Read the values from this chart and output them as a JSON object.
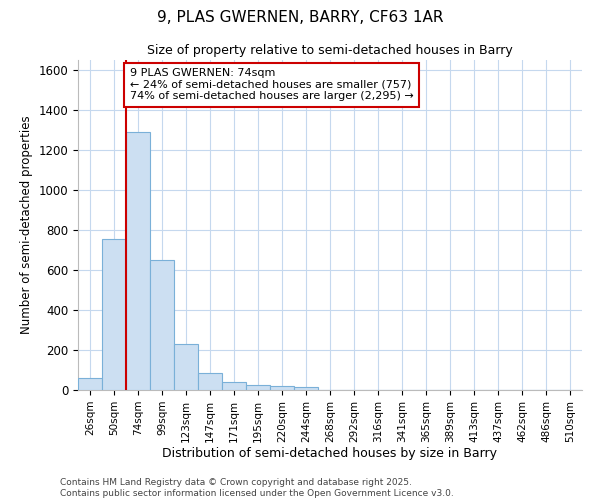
{
  "title": "9, PLAS GWERNEN, BARRY, CF63 1AR",
  "subtitle": "Size of property relative to semi-detached houses in Barry",
  "xlabel": "Distribution of semi-detached houses by size in Barry",
  "ylabel": "Number of semi-detached properties",
  "categories": [
    "26sqm",
    "50sqm",
    "74sqm",
    "99sqm",
    "123sqm",
    "147sqm",
    "171sqm",
    "195sqm",
    "220sqm",
    "244sqm",
    "268sqm",
    "292sqm",
    "316sqm",
    "341sqm",
    "365sqm",
    "389sqm",
    "413sqm",
    "437sqm",
    "462sqm",
    "486sqm",
    "510sqm"
  ],
  "values": [
    60,
    755,
    1290,
    650,
    230,
    85,
    40,
    25,
    20,
    15,
    0,
    0,
    0,
    0,
    0,
    0,
    0,
    0,
    0,
    0,
    0
  ],
  "bar_color": "#ccdff2",
  "bar_edge_color": "#7ab0d8",
  "grid_color": "#c5d8ee",
  "background_color": "#ffffff",
  "red_line_index": 2,
  "annotation_text": "9 PLAS GWERNEN: 74sqm\n← 24% of semi-detached houses are smaller (757)\n74% of semi-detached houses are larger (2,295) →",
  "annotation_box_color": "#ffffff",
  "annotation_border_color": "#cc0000",
  "footer": "Contains HM Land Registry data © Crown copyright and database right 2025.\nContains public sector information licensed under the Open Government Licence v3.0.",
  "ylim": [
    0,
    1650
  ],
  "yticks": [
    0,
    200,
    400,
    600,
    800,
    1000,
    1200,
    1400,
    1600
  ]
}
